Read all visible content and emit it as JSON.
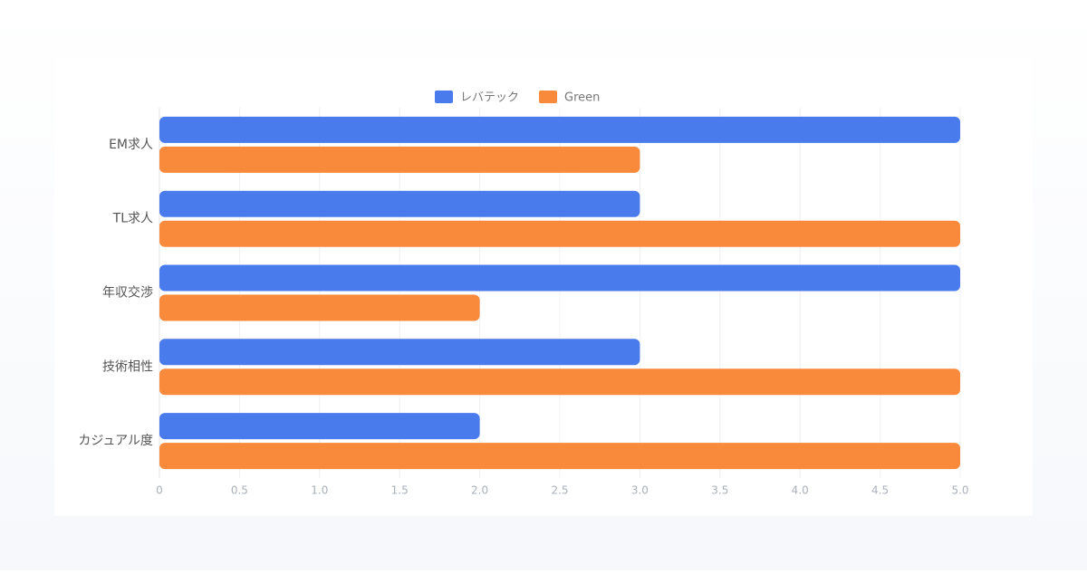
{
  "chart_data": {
    "type": "bar",
    "orientation": "horizontal",
    "categories": [
      "EM求人",
      "TL求人",
      "年収交渉",
      "技術相性",
      "カジュアル度"
    ],
    "series": [
      {
        "name": "レバテック",
        "color": "#4a7bec",
        "values": [
          5,
          3,
          5,
          3,
          2
        ]
      },
      {
        "name": "Green",
        "color": "#f98a3b",
        "values": [
          3,
          5,
          2,
          5,
          5
        ]
      }
    ],
    "xlim": [
      0,
      5
    ],
    "xticks": [
      0,
      0.5,
      {
        "value": 1,
        "label": "1.0"
      },
      1.5,
      {
        "value": 2,
        "label": "2.0"
      },
      2.5,
      {
        "value": 3,
        "label": "3.0"
      },
      3.5,
      {
        "value": 4,
        "label": "4.0"
      },
      4.5,
      {
        "value": 5,
        "label": "5.0"
      }
    ],
    "grid": true,
    "legend": "top"
  }
}
